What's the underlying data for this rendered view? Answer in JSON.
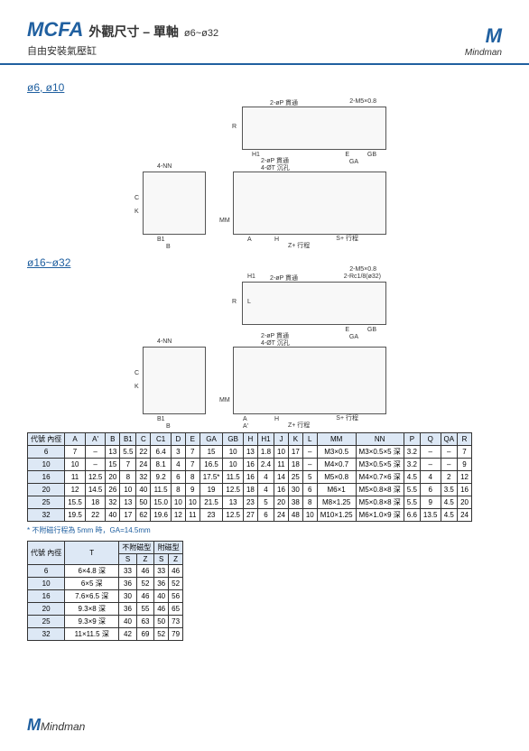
{
  "header": {
    "code": "MCFA",
    "title_cn": "外觀尺寸 – 單軸",
    "range": "ø6~ø32",
    "subtitle": "自由安裝氣壓缸",
    "brand": "Mindman"
  },
  "section1": {
    "label": "ø6, ø10"
  },
  "section2": {
    "label": "ø16~ø32"
  },
  "diagram_labels": {
    "nn": "4-NN",
    "c": "C",
    "k": "K",
    "b": "B",
    "b1": "B1",
    "p2": "2-øP 貫通",
    "m5": "2-M5×0.8",
    "r": "R",
    "h1": "H1",
    "e": "E",
    "gb": "GB",
    "ga": "GA",
    "t4": "4-ØT 沉孔",
    "mm": "MM",
    "a": "A",
    "a1": "A'",
    "h": "H",
    "sstroke": "S+ 行程",
    "zstroke": "Z+ 行程",
    "rc": "2-Rc1/8(ø32)",
    "l": "L"
  },
  "table1": {
    "columns": [
      "代號\n內徑",
      "A",
      "A'",
      "B",
      "B1",
      "C",
      "C1",
      "D",
      "E",
      "GA",
      "GB",
      "H",
      "H1",
      "J",
      "K",
      "L",
      "MM",
      "NN",
      "P",
      "Q",
      "QA",
      "R"
    ],
    "rows": [
      [
        "6",
        "7",
        "–",
        "13",
        "5.5",
        "22",
        "6.4",
        "3",
        "7",
        "15",
        "10",
        "13",
        "1.8",
        "10",
        "17",
        "–",
        "M3×0.5",
        "M3×0.5×5 深",
        "3.2",
        "–",
        "–",
        "7"
      ],
      [
        "10",
        "10",
        "–",
        "15",
        "7",
        "24",
        "8.1",
        "4",
        "7",
        "16.5",
        "10",
        "16",
        "2.4",
        "11",
        "18",
        "–",
        "M4×0.7",
        "M3×0.5×5 深",
        "3.2",
        "–",
        "–",
        "9"
      ],
      [
        "16",
        "11",
        "12.5",
        "20",
        "8",
        "32",
        "9.2",
        "6",
        "8",
        "17.5*",
        "11.5",
        "16",
        "4",
        "14",
        "25",
        "5",
        "M5×0.8",
        "M4×0.7×6 深",
        "4.5",
        "4",
        "2",
        "12"
      ],
      [
        "20",
        "12",
        "14.5",
        "26",
        "10",
        "40",
        "11.5",
        "8",
        "9",
        "19",
        "12.5",
        "18",
        "4",
        "16",
        "30",
        "6",
        "M6×1",
        "M5×0.8×8 深",
        "5.5",
        "6",
        "3.5",
        "16"
      ],
      [
        "25",
        "15.5",
        "18",
        "32",
        "13",
        "50",
        "15.0",
        "10",
        "10",
        "21.5",
        "13",
        "23",
        "5",
        "20",
        "38",
        "8",
        "M8×1.25",
        "M5×0.8×8 深",
        "5.5",
        "9",
        "4.5",
        "20"
      ],
      [
        "32",
        "19.5",
        "22",
        "40",
        "17",
        "62",
        "19.6",
        "12",
        "11",
        "23",
        "12.5",
        "27",
        "6",
        "24",
        "48",
        "10",
        "M10×1.25",
        "M6×1.0×9 深",
        "6.6",
        "13.5",
        "4.5",
        "24"
      ]
    ]
  },
  "note": "* 不附磁行程為 5mm 時，GA=14.5mm",
  "table2": {
    "header_top": [
      "代號\n內徑",
      "T",
      "不附磁型",
      "附磁型"
    ],
    "header_sub": [
      "S",
      "Z",
      "S",
      "Z"
    ],
    "rows": [
      [
        "6",
        "6×4.8 深",
        "33",
        "46",
        "33",
        "46"
      ],
      [
        "10",
        "6×5 深",
        "36",
        "52",
        "36",
        "52"
      ],
      [
        "16",
        "7.6×6.5 深",
        "30",
        "46",
        "40",
        "56"
      ],
      [
        "20",
        "9.3×8 深",
        "36",
        "55",
        "46",
        "65"
      ],
      [
        "25",
        "9.3×9 深",
        "40",
        "63",
        "50",
        "73"
      ],
      [
        "32",
        "11×11.5 深",
        "42",
        "69",
        "52",
        "79"
      ]
    ]
  }
}
